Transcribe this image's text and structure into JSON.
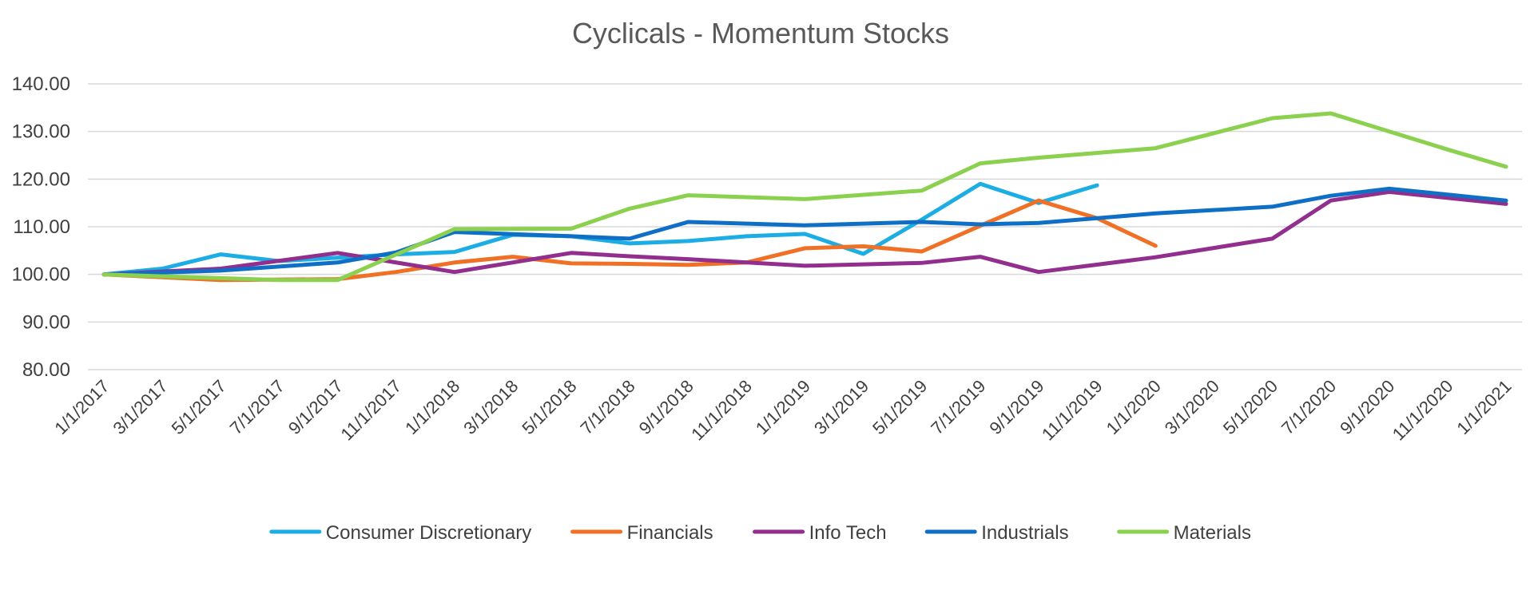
{
  "chart_data": {
    "type": "line",
    "title": "Cyclicals - Momentum Stocks",
    "xlabel": "",
    "ylabel": "",
    "ylim": [
      80,
      140
    ],
    "ytick_step": 10,
    "ytick_labels": [
      "80.00",
      "90.00",
      "100.00",
      "110.00",
      "120.00",
      "130.00",
      "140.00"
    ],
    "x_tick_labels": [
      "1/1/2017",
      "3/1/2017",
      "5/1/2017",
      "7/1/2017",
      "9/1/2017",
      "11/1/2017",
      "1/1/2018",
      "3/1/2018",
      "5/1/2018",
      "7/1/2018",
      "9/1/2018",
      "11/1/2018",
      "1/1/2019",
      "3/1/2019",
      "5/1/2019",
      "7/1/2019",
      "9/1/2019",
      "11/1/2019",
      "1/1/2020",
      "3/1/2020",
      "5/1/2020",
      "7/1/2020",
      "9/1/2020",
      "11/1/2020",
      "1/1/2021"
    ],
    "grid": true,
    "legend_position": "bottom",
    "series": [
      {
        "name": "Consumer Discretionary",
        "color": "#1CADE4",
        "values": [
          100.0,
          101.2,
          104.2,
          102.8,
          103.5,
          104.2,
          104.7,
          108.3,
          108.0,
          106.5,
          107.0,
          108.0,
          108.5,
          104.3,
          111.5,
          119.0,
          115.0,
          118.7
        ]
      },
      {
        "name": "Financials",
        "color": "#F07025",
        "values": [
          100.0,
          98.8,
          99.0,
          100.5,
          102.5,
          103.7,
          102.3,
          102.2,
          102.0,
          102.5,
          105.5,
          105.9,
          104.8,
          110.2,
          115.5,
          111.8,
          106.0
        ]
      },
      {
        "name": "Info Tech",
        "color": "#922E8E",
        "values": [
          100.0,
          101.2,
          104.5,
          100.5,
          104.5,
          103.8,
          103.2,
          101.8,
          102.4,
          103.7,
          100.5,
          103.6,
          107.5,
          115.5,
          117.3,
          114.8
        ]
      },
      {
        "name": "Industrials",
        "color": "#0F6FC6",
        "values": [
          100.0,
          100.8,
          102.5,
          104.6,
          108.9,
          108.0,
          107.5,
          111.0,
          110.3,
          111.0,
          110.5,
          110.8,
          112.8,
          114.2,
          116.5,
          118.0,
          115.5
        ]
      },
      {
        "name": "Materials",
        "color": "#8BD14F",
        "values": [
          100.0,
          99.2,
          98.8,
          98.8,
          109.5,
          109.6,
          113.8,
          116.6,
          115.8,
          117.6,
          123.3,
          124.5,
          126.5,
          132.8,
          133.8,
          126.2,
          122.6
        ]
      }
    ],
    "x_positions": {
      "Consumer Discretionary": [
        0,
        2,
        4,
        6,
        8,
        10,
        12,
        14,
        16,
        18,
        20,
        22,
        24,
        26,
        28,
        30,
        32,
        34
      ],
      "Financials": [
        0,
        4,
        8,
        10,
        12,
        14,
        16,
        18,
        20,
        22,
        24,
        26,
        28,
        30,
        32,
        34,
        36
      ],
      "Info Tech": [
        0,
        4,
        8,
        12,
        16,
        18,
        20,
        24,
        28,
        30,
        32,
        36,
        40,
        42,
        44,
        48
      ],
      "Industrials": [
        0,
        4,
        8,
        10,
        12,
        16,
        18,
        20,
        24,
        28,
        30,
        32,
        36,
        40,
        42,
        44,
        48
      ],
      "Materials": [
        0,
        4,
        6,
        8,
        12,
        16,
        18,
        20,
        24,
        28,
        30,
        32,
        36,
        40,
        42,
        46,
        48
      ]
    }
  }
}
